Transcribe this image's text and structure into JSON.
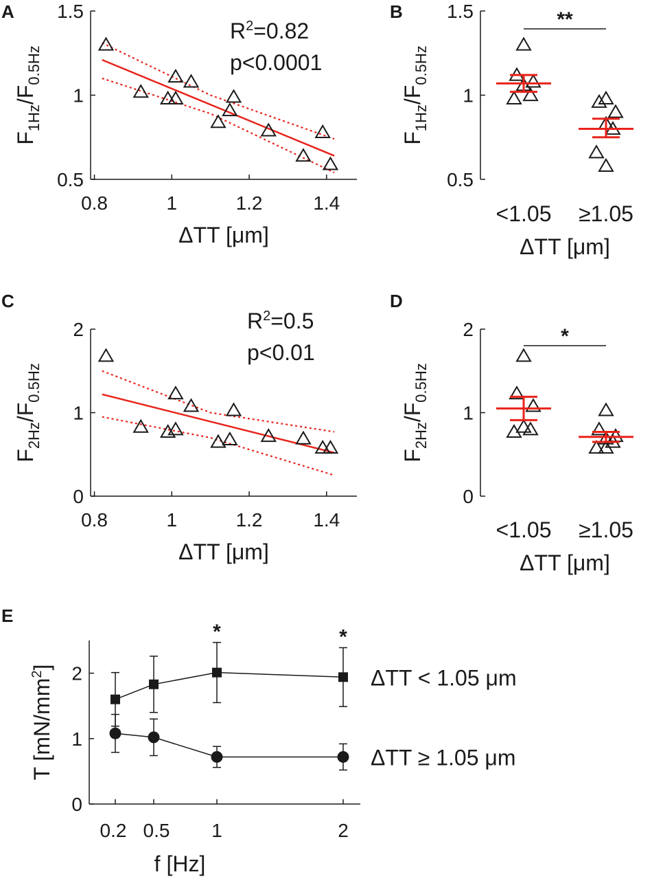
{
  "chart_data": [
    {
      "panel": "A",
      "type": "scatter",
      "xlabel": "ΔTT [μm]",
      "ylabel": {
        "main1": "F",
        "sub1": "1Hz",
        "main2": "/F",
        "sub2": "0.5Hz"
      },
      "xlim": [
        0.76,
        1.45
      ],
      "ylim": [
        0.5,
        1.5
      ],
      "xticks": [
        {
          "v": 0.8,
          "t": "0.8"
        },
        {
          "v": 1.0,
          "t": "1"
        },
        {
          "v": 1.2,
          "t": "1.2"
        },
        {
          "v": 1.4,
          "t": "1.4"
        }
      ],
      "yticks": [
        {
          "v": 0.5,
          "t": "0.5"
        },
        {
          "v": 1.0,
          "t": "1"
        },
        {
          "v": 1.5,
          "t": "1.5"
        }
      ],
      "annotation": {
        "r2_label": "R",
        "r2_sup": "2",
        "r2_value": "=0.82",
        "p_text": "p<0.0001"
      },
      "points": [
        {
          "x": 0.83,
          "y": 1.3
        },
        {
          "x": 0.92,
          "y": 1.02
        },
        {
          "x": 0.99,
          "y": 0.98
        },
        {
          "x": 1.01,
          "y": 0.98
        },
        {
          "x": 1.01,
          "y": 1.11
        },
        {
          "x": 1.05,
          "y": 1.08
        },
        {
          "x": 1.12,
          "y": 0.84
        },
        {
          "x": 1.15,
          "y": 0.91
        },
        {
          "x": 1.16,
          "y": 0.99
        },
        {
          "x": 1.25,
          "y": 0.79
        },
        {
          "x": 1.34,
          "y": 0.64
        },
        {
          "x": 1.39,
          "y": 0.78
        },
        {
          "x": 1.41,
          "y": 0.59
        }
      ],
      "fit": [
        {
          "x": 0.82,
          "y": 1.21
        },
        {
          "x": 1.42,
          "y": 0.64
        }
      ],
      "ci_upper": [
        {
          "x": 0.82,
          "y": 1.31
        },
        {
          "x": 1.1,
          "y": 1.0
        },
        {
          "x": 1.42,
          "y": 0.74
        }
      ],
      "ci_lower": [
        {
          "x": 0.82,
          "y": 1.1
        },
        {
          "x": 1.1,
          "y": 0.89
        },
        {
          "x": 1.42,
          "y": 0.54
        }
      ]
    },
    {
      "panel": "B",
      "type": "scatter",
      "xlabel": "ΔTT [μm]",
      "ylabel": {
        "main1": "F",
        "sub1": "1Hz",
        "main2": "/F",
        "sub2": "0.5Hz"
      },
      "ylim": [
        0.5,
        1.5
      ],
      "yticks": [
        {
          "v": 0.5,
          "t": "0.5"
        },
        {
          "v": 1.0,
          "t": "1"
        },
        {
          "v": 1.5,
          "t": "1.5"
        }
      ],
      "categories": [
        "<1.05",
        "≥1.05"
      ],
      "significance": "**",
      "groups": [
        {
          "values": [
            1.3,
            1.12,
            1.08,
            1.06,
            1.0,
            0.98
          ],
          "mean": 1.07,
          "sem_low": 1.02,
          "sem_high": 1.12
        },
        {
          "values": [
            0.98,
            0.96,
            0.9,
            0.83,
            0.8,
            0.66,
            0.58
          ],
          "mean": 0.8,
          "sem_low": 0.75,
          "sem_high": 0.86
        }
      ]
    },
    {
      "panel": "C",
      "type": "scatter",
      "xlabel": "ΔTT [μm]",
      "ylabel": {
        "main1": "F",
        "sub1": "2Hz",
        "main2": "/F",
        "sub2": "0.5Hz"
      },
      "xlim": [
        0.76,
        1.45
      ],
      "ylim": [
        0,
        2
      ],
      "xticks": [
        {
          "v": 0.8,
          "t": "0.8"
        },
        {
          "v": 1.0,
          "t": "1"
        },
        {
          "v": 1.2,
          "t": "1.2"
        },
        {
          "v": 1.4,
          "t": "1.4"
        }
      ],
      "yticks": [
        {
          "v": 0,
          "t": "0"
        },
        {
          "v": 1,
          "t": "1"
        },
        {
          "v": 2,
          "t": "2"
        }
      ],
      "annotation": {
        "r2_label": "R",
        "r2_sup": "2",
        "r2_value": "=0.5",
        "p_text": "p<0.01"
      },
      "points": [
        {
          "x": 0.83,
          "y": 1.68
        },
        {
          "x": 0.92,
          "y": 0.83
        },
        {
          "x": 0.99,
          "y": 0.77
        },
        {
          "x": 1.01,
          "y": 0.8
        },
        {
          "x": 1.01,
          "y": 1.23
        },
        {
          "x": 1.05,
          "y": 1.08
        },
        {
          "x": 1.12,
          "y": 0.65
        },
        {
          "x": 1.15,
          "y": 0.68
        },
        {
          "x": 1.16,
          "y": 1.03
        },
        {
          "x": 1.25,
          "y": 0.72
        },
        {
          "x": 1.34,
          "y": 0.69
        },
        {
          "x": 1.39,
          "y": 0.58
        },
        {
          "x": 1.41,
          "y": 0.58
        }
      ],
      "fit": [
        {
          "x": 0.82,
          "y": 1.22
        },
        {
          "x": 1.42,
          "y": 0.52
        }
      ],
      "ci_upper": [
        {
          "x": 0.82,
          "y": 1.5
        },
        {
          "x": 1.1,
          "y": 1.0
        },
        {
          "x": 1.42,
          "y": 0.77
        }
      ],
      "ci_lower": [
        {
          "x": 0.82,
          "y": 0.95
        },
        {
          "x": 1.1,
          "y": 0.7
        },
        {
          "x": 1.42,
          "y": 0.25
        }
      ]
    },
    {
      "panel": "D",
      "type": "scatter",
      "xlabel": "ΔTT [μm]",
      "ylabel": {
        "main1": "F",
        "sub1": "2Hz",
        "main2": "/F",
        "sub2": "0.5Hz"
      },
      "ylim": [
        0,
        2
      ],
      "yticks": [
        {
          "v": 0,
          "t": "0"
        },
        {
          "v": 1,
          "t": "1"
        },
        {
          "v": 2,
          "t": "2"
        }
      ],
      "categories": [
        "<1.05",
        "≥1.05"
      ],
      "significance": "*",
      "groups": [
        {
          "values": [
            1.68,
            1.23,
            1.08,
            0.83,
            0.8,
            0.77
          ],
          "mean": 1.05,
          "sem_low": 0.91,
          "sem_high": 1.19
        },
        {
          "values": [
            1.03,
            0.8,
            0.72,
            0.69,
            0.65,
            0.58,
            0.58
          ],
          "mean": 0.71,
          "sem_low": 0.65,
          "sem_high": 0.77
        }
      ]
    },
    {
      "panel": "E",
      "type": "line",
      "xlabel": "f [Hz]",
      "ylabel": {
        "main": "T [mN/mm",
        "sup": "2",
        "close": "]"
      },
      "x": [
        0.2,
        0.5,
        1,
        2
      ],
      "xticks": [
        {
          "v": 0.2,
          "t": "0.2"
        },
        {
          "v": 0.5,
          "t": "0.5"
        },
        {
          "v": 1,
          "t": "1"
        },
        {
          "v": 2,
          "t": "2"
        }
      ],
      "ylim": [
        0,
        2.5
      ],
      "yticks": [
        {
          "v": 0,
          "t": "0"
        },
        {
          "v": 1,
          "t": "1"
        },
        {
          "v": 2,
          "t": "2"
        }
      ],
      "significance": [
        {
          "x": 1,
          "label": "*"
        },
        {
          "x": 2,
          "label": "*"
        }
      ],
      "series": [
        {
          "name": "ΔTT < 1.05 μm",
          "marker": "square",
          "values": [
            1.6,
            1.83,
            2.01,
            1.94
          ],
          "err": [
            0.41,
            0.43,
            0.46,
            0.45
          ]
        },
        {
          "name": "ΔTT ≥ 1.05 μm",
          "marker": "circle",
          "values": [
            1.08,
            1.02,
            0.72,
            0.72
          ],
          "err": [
            0.29,
            0.28,
            0.16,
            0.2
          ]
        }
      ]
    }
  ],
  "panel_letters": [
    "A",
    "B",
    "C",
    "D",
    "E"
  ]
}
